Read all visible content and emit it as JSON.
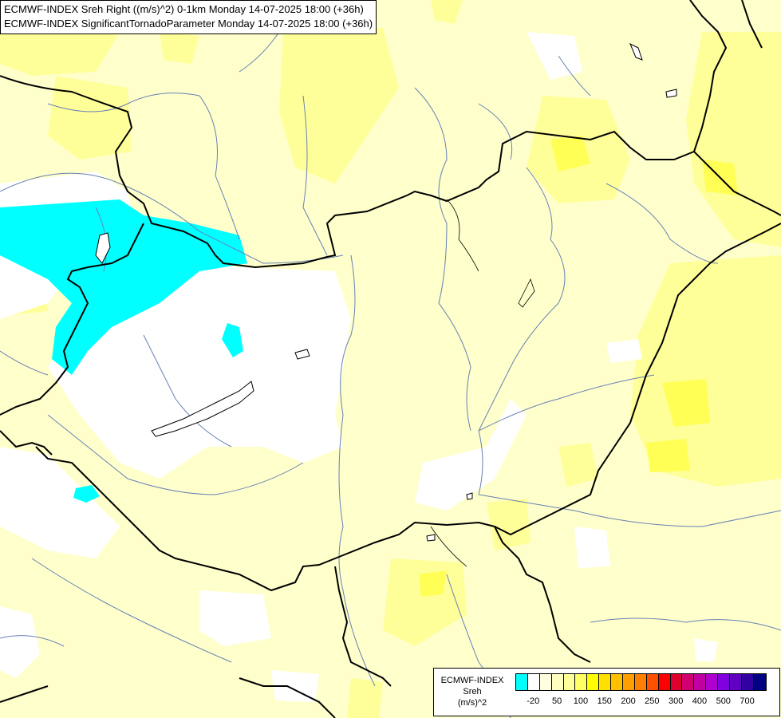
{
  "header": {
    "line1": "ECMWF-INDEX Sreh Right ((m/s)^2) 0-1km Monday 14-07-2025 18:00 (+36h)",
    "line2": "ECMWF-INDEX SignificantTornadoParameter Monday 14-07-2025 18:00 (+36h)"
  },
  "legend": {
    "source": "ECMWF-INDEX",
    "parameter": "Sreh",
    "unit": "(m/s)^2",
    "colors": [
      "#00ffff",
      "#ffffff",
      "#ffffe0",
      "#ffffc0",
      "#ffff99",
      "#ffff66",
      "#ffff00",
      "#ffe000",
      "#ffc000",
      "#ffa000",
      "#ff8000",
      "#ff5000",
      "#ff0000",
      "#e00030",
      "#d00070",
      "#c000a0",
      "#b000d0",
      "#8000e0",
      "#6000c0",
      "#3000a0",
      "#000080"
    ],
    "tick_labels": [
      "-20",
      "50",
      "100",
      "150",
      "200",
      "250",
      "300",
      "400",
      "500",
      "700"
    ]
  },
  "map": {
    "field_colors": {
      "cyan": "#00ffff",
      "white": "#ffffff",
      "pale": "#ffffcc",
      "light_yellow": "#ffff99",
      "yellow": "#ffff44"
    },
    "border_color": "#000000",
    "river_color": "#6680b3"
  }
}
